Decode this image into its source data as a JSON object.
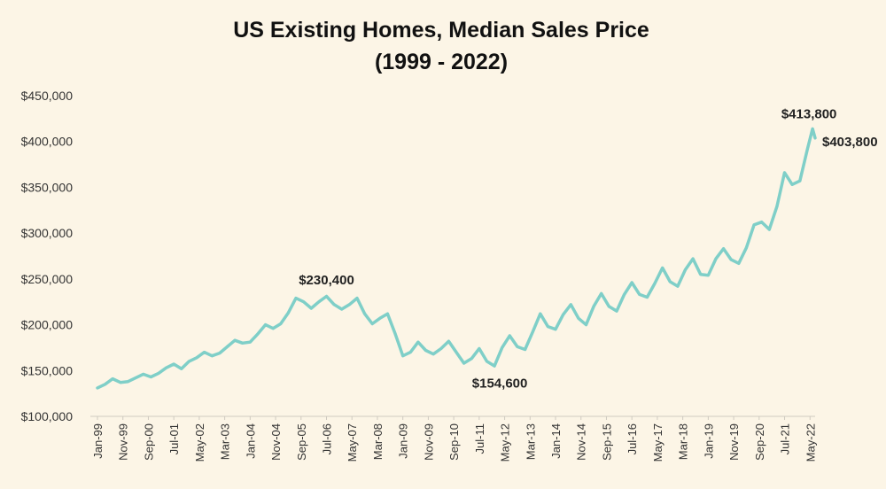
{
  "chart_data": {
    "type": "line",
    "title": "US Existing Homes, Median Sales Price",
    "subtitle": "(1999 - 2022)",
    "xlabel": "",
    "ylabel": "",
    "ylim": [
      100000,
      450000
    ],
    "yticks": [
      "$100,000",
      "$150,000",
      "$200,000",
      "$250,000",
      "$300,000",
      "$350,000",
      "$400,000",
      "$450,000"
    ],
    "xticks": [
      "Jan-99",
      "Nov-99",
      "Sep-00",
      "Jul-01",
      "May-02",
      "Mar-03",
      "Jan-04",
      "Nov-04",
      "Sep-05",
      "Jul-06",
      "May-07",
      "Mar-08",
      "Jan-09",
      "Nov-09",
      "Sep-10",
      "Jul-11",
      "May-12",
      "Mar-13",
      "Jan-14",
      "Nov-14",
      "Sep-15",
      "Jul-16",
      "May-17",
      "Mar-18",
      "Jan-19",
      "Nov-19",
      "Sep-20",
      "Jul-21",
      "May-22"
    ],
    "grid": false,
    "line_color": "#7fcfc8",
    "series": [
      {
        "x": [
          "Jan-99",
          "Apr-99",
          "Jul-99",
          "Oct-99",
          "Jan-00",
          "Apr-00",
          "Jul-00",
          "Oct-00",
          "Jan-01",
          "Apr-01",
          "Jul-01",
          "Oct-01",
          "Jan-02",
          "Apr-02",
          "Jul-02",
          "Oct-02",
          "Jan-03",
          "Apr-03",
          "Jul-03",
          "Oct-03",
          "Jan-04",
          "Apr-04",
          "Jul-04",
          "Oct-04",
          "Jan-05",
          "Apr-05",
          "Jul-05",
          "Oct-05",
          "Jan-06",
          "Apr-06",
          "Jul-06",
          "Oct-06",
          "Jan-07",
          "Apr-07",
          "Jul-07",
          "Oct-07",
          "Jan-08",
          "Apr-08",
          "Jul-08",
          "Oct-08",
          "Jan-09",
          "Apr-09",
          "Jul-09",
          "Oct-09",
          "Jan-10",
          "Apr-10",
          "Jul-10",
          "Oct-10",
          "Jan-11",
          "Apr-11",
          "Jul-11",
          "Oct-11",
          "Jan-12",
          "Apr-12",
          "Jul-12",
          "Oct-12",
          "Jan-13",
          "Apr-13",
          "Jul-13",
          "Oct-13",
          "Jan-14",
          "Apr-14",
          "Jul-14",
          "Oct-14",
          "Jan-15",
          "Apr-15",
          "Jul-15",
          "Oct-15",
          "Jan-16",
          "Apr-16",
          "Jul-16",
          "Oct-16",
          "Jan-17",
          "Apr-17",
          "Jul-17",
          "Oct-17",
          "Jan-18",
          "Apr-18",
          "Jul-18",
          "Oct-18",
          "Jan-19",
          "Apr-19",
          "Jul-19",
          "Oct-19",
          "Jan-20",
          "Apr-20",
          "Jul-20",
          "Oct-20",
          "Jan-21",
          "Apr-21",
          "Jul-21",
          "Oct-21",
          "Jan-22",
          "Apr-22",
          "Jun-22",
          "Jul-22"
        ],
        "values": [
          131000,
          135000,
          141000,
          137000,
          138000,
          142000,
          146000,
          143000,
          147000,
          153000,
          157000,
          152000,
          160000,
          164000,
          170000,
          166000,
          169000,
          176000,
          183000,
          180000,
          181000,
          190000,
          200000,
          196000,
          201000,
          213000,
          229000,
          225000,
          218000,
          225000,
          231000,
          222000,
          217000,
          222000,
          229000,
          212000,
          201000,
          207000,
          212000,
          190000,
          166000,
          170000,
          181000,
          172000,
          168000,
          174000,
          182000,
          170000,
          158000,
          163000,
          174000,
          160000,
          155000,
          175000,
          188000,
          176000,
          173000,
          192000,
          212000,
          198000,
          195000,
          211000,
          222000,
          207000,
          200000,
          220000,
          234000,
          220000,
          215000,
          233000,
          246000,
          233000,
          230000,
          245000,
          262000,
          247000,
          242000,
          260000,
          272000,
          255000,
          254000,
          272000,
          283000,
          271000,
          267000,
          284000,
          309000,
          312000,
          304000,
          329000,
          366000,
          353000,
          357000,
          392000,
          413800,
          403800
        ]
      }
    ],
    "annotations": [
      {
        "x": "Jul-06",
        "value": 230400,
        "label": "$230,400"
      },
      {
        "x": "Jan-12",
        "value": 154600,
        "label": "$154,600"
      },
      {
        "x": "Jun-22",
        "value": 413800,
        "label": "$413,800"
      },
      {
        "x": "Jul-22",
        "value": 403800,
        "label": "$403,800"
      }
    ]
  }
}
